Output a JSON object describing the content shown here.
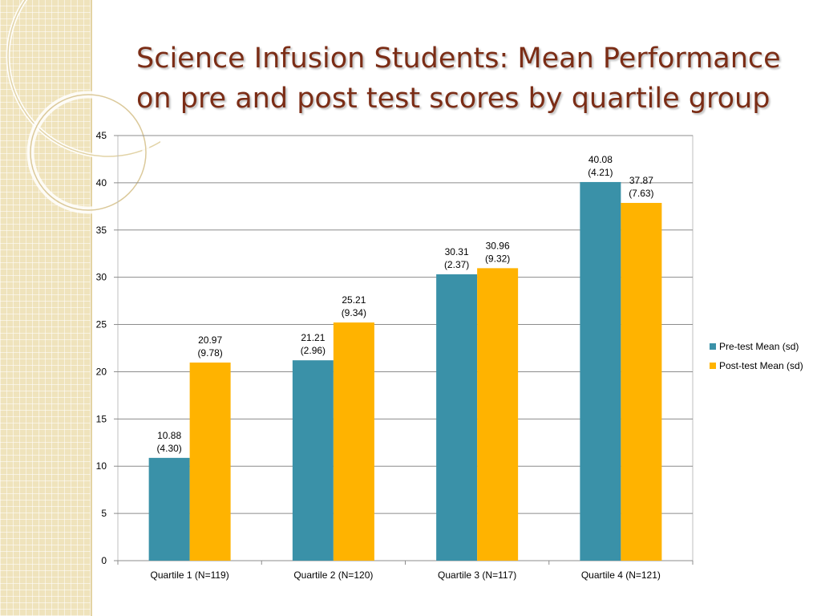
{
  "slide": {
    "title": "Science Infusion Students: Mean Performance on pre and post test scores by quartile group"
  },
  "chart_data": {
    "type": "bar",
    "categories": [
      "Quartile 1 (N=119)",
      "Quartile 2 (N=120)",
      "Quartile 3 (N=117)",
      "Quartile 4 (N=121)"
    ],
    "series": [
      {
        "name": "Pre-test Mean (sd)",
        "color": "#3a91a8",
        "values": [
          10.88,
          21.21,
          30.31,
          40.08
        ],
        "labels": [
          [
            "10.88",
            "(4.30)"
          ],
          [
            "21.21",
            "(2.96)"
          ],
          [
            "30.31",
            "(2.37)"
          ],
          [
            "40.08",
            "(4.21)"
          ]
        ]
      },
      {
        "name": "Post-test Mean (sd)",
        "color": "#ffb300",
        "values": [
          20.97,
          25.21,
          30.96,
          37.87
        ],
        "labels": [
          [
            "20.97",
            "(9.78)"
          ],
          [
            "25.21",
            "(9.34)"
          ],
          [
            "30.96",
            "(9.32)"
          ],
          [
            "37.87",
            "(7.63)"
          ]
        ]
      }
    ],
    "ylim": [
      0,
      45
    ],
    "yticks": [
      0,
      5,
      10,
      15,
      20,
      25,
      30,
      35,
      40,
      45
    ],
    "grid": true,
    "legend_position": "right"
  }
}
